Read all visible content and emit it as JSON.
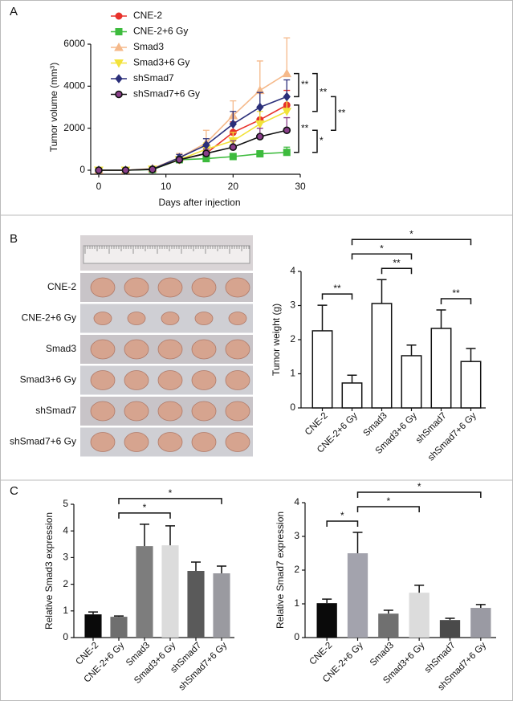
{
  "chart_data": [
    {
      "type": "line",
      "panel": "A",
      "x_label": "Days after injection",
      "y_label": "Tumor volume (mm³)",
      "x": [
        0,
        4,
        8,
        12,
        16,
        20,
        24,
        28
      ],
      "xlim": [
        0,
        30
      ],
      "xticks": [
        0,
        10,
        20,
        30
      ],
      "ylim": [
        0,
        6000
      ],
      "yticks": [
        0,
        2000,
        4000,
        6000
      ],
      "series": [
        {
          "name": "CNE-2",
          "color": "#e8312b",
          "marker": "circle",
          "values": [
            0,
            0,
            50,
            500,
            800,
            1800,
            2400,
            3100
          ],
          "errors": [
            0,
            0,
            30,
            100,
            300,
            500,
            600,
            700
          ]
        },
        {
          "name": "CNE-2+6 Gy",
          "color": "#3dbb3d",
          "marker": "square",
          "values": [
            0,
            0,
            30,
            500,
            550,
            650,
            780,
            850
          ],
          "errors": [
            0,
            0,
            20,
            80,
            100,
            150,
            150,
            250
          ]
        },
        {
          "name": "Smad3",
          "color": "#f5b98a",
          "marker": "triangle-up",
          "values": [
            0,
            0,
            80,
            600,
            1300,
            2600,
            3800,
            4600
          ],
          "errors": [
            0,
            0,
            50,
            200,
            600,
            700,
            1400,
            1700
          ]
        },
        {
          "name": "Smad3+6 Gy",
          "color": "#f2e23a",
          "marker": "triangle-down",
          "values": [
            0,
            0,
            50,
            500,
            1000,
            1400,
            2200,
            2800
          ],
          "errors": [
            0,
            0,
            30,
            150,
            300,
            400,
            600,
            700
          ]
        },
        {
          "name": "shSmad7",
          "color": "#2b2f7a",
          "marker": "diamond",
          "values": [
            0,
            0,
            50,
            600,
            1200,
            2200,
            3000,
            3500
          ],
          "errors": [
            0,
            0,
            30,
            150,
            300,
            600,
            700,
            800
          ]
        },
        {
          "name": "shSmad7+6 Gy",
          "color": "#111111",
          "edge_color": "#111111",
          "fill": "#8a3f8a",
          "marker": "circle",
          "values": [
            0,
            0,
            40,
            500,
            800,
            1100,
            1600,
            1900
          ],
          "errors": [
            0,
            0,
            20,
            100,
            200,
            300,
            400,
            600
          ]
        }
      ],
      "significance": [
        {
          "between": [
            "Smad3",
            "shSmad7"
          ],
          "label": "**"
        },
        {
          "between": [
            "CNE-2",
            "CNE-2+6 Gy"
          ],
          "label": "**"
        },
        {
          "between": [
            "Smad3",
            "Smad3+6 Gy"
          ],
          "label": "**"
        },
        {
          "between": [
            "shSmad7+6 Gy",
            "CNE-2+6 Gy"
          ],
          "label": "*"
        },
        {
          "between": [
            "shSmad7",
            "shSmad7+6 Gy"
          ],
          "label": "**"
        }
      ]
    },
    {
      "type": "bar",
      "panel": "B",
      "y_label": "Tumor weight (g)",
      "categories": [
        "CNE-2",
        "CNE-2+6 Gy",
        "Smad3",
        "Smad3+6 Gy",
        "shSmad7",
        "shSmad7+6 Gy"
      ],
      "values": [
        2.26,
        0.73,
        3.06,
        1.53,
        2.33,
        1.36
      ],
      "errors": [
        0.75,
        0.23,
        0.7,
        0.31,
        0.54,
        0.38
      ],
      "color": "#ffffff",
      "edge_color": "#111111",
      "ylim": [
        0,
        4
      ],
      "yticks": [
        0,
        1,
        2,
        3,
        4
      ],
      "significance": [
        {
          "between": [
            "CNE-2",
            "CNE-2+6 Gy"
          ],
          "label": "**"
        },
        {
          "between": [
            "Smad3",
            "Smad3+6 Gy"
          ],
          "label": "**"
        },
        {
          "between": [
            "shSmad7",
            "shSmad7+6 Gy"
          ],
          "label": "**"
        },
        {
          "between": [
            "CNE-2+6 Gy",
            "Smad3+6 Gy"
          ],
          "label": "*"
        },
        {
          "between": [
            "CNE-2+6 Gy",
            "shSmad7+6 Gy"
          ],
          "label": "*"
        }
      ]
    },
    {
      "type": "bar",
      "panel": "C",
      "y_label": "Relative Smad3 expression",
      "categories": [
        "CNE-2",
        "CNE-2+6 Gy",
        "Smad3",
        "Smad3+6 Gy",
        "shSmad7",
        "shSmad7+6 Gy"
      ],
      "values": [
        0.87,
        0.78,
        3.43,
        3.46,
        2.5,
        2.41
      ],
      "errors": [
        0.09,
        0.03,
        0.82,
        0.73,
        0.33,
        0.27
      ],
      "colors": [
        "#0a0a0a",
        "#6f6f6f",
        "#7d7d7d",
        "#dcdcdc",
        "#5a5a5a",
        "#9a9aa0"
      ],
      "ylim": [
        0,
        5
      ],
      "yticks": [
        0,
        1,
        2,
        3,
        4,
        5
      ],
      "significance": [
        {
          "between": [
            "CNE-2+6 Gy",
            "Smad3+6 Gy"
          ],
          "label": "*"
        },
        {
          "between": [
            "CNE-2+6 Gy",
            "shSmad7+6 Gy"
          ],
          "label": "*"
        }
      ]
    },
    {
      "type": "bar",
      "y_label": "Relative Smad7 expression",
      "categories": [
        "CNE-2",
        "CNE-2+6 Gy",
        "Smad3",
        "Smad3+6 Gy",
        "shSmad7",
        "shSmad7+6 Gy"
      ],
      "values": [
        1.02,
        2.5,
        0.71,
        1.33,
        0.52,
        0.88
      ],
      "errors": [
        0.12,
        0.62,
        0.1,
        0.22,
        0.05,
        0.1
      ],
      "colors": [
        "#0a0a0a",
        "#a3a3ad",
        "#707070",
        "#dcdcdc",
        "#4a4a4a",
        "#9a9aa3"
      ],
      "ylim": [
        0,
        4
      ],
      "yticks": [
        0,
        1,
        2,
        3,
        4
      ],
      "significance": [
        {
          "between": [
            "CNE-2",
            "CNE-2+6 Gy"
          ],
          "label": "*"
        },
        {
          "between": [
            "CNE-2+6 Gy",
            "Smad3+6 Gy"
          ],
          "label": "*"
        },
        {
          "between": [
            "CNE-2+6 Gy",
            "shSmad7+6 Gy"
          ],
          "label": "*"
        }
      ]
    }
  ]
}
